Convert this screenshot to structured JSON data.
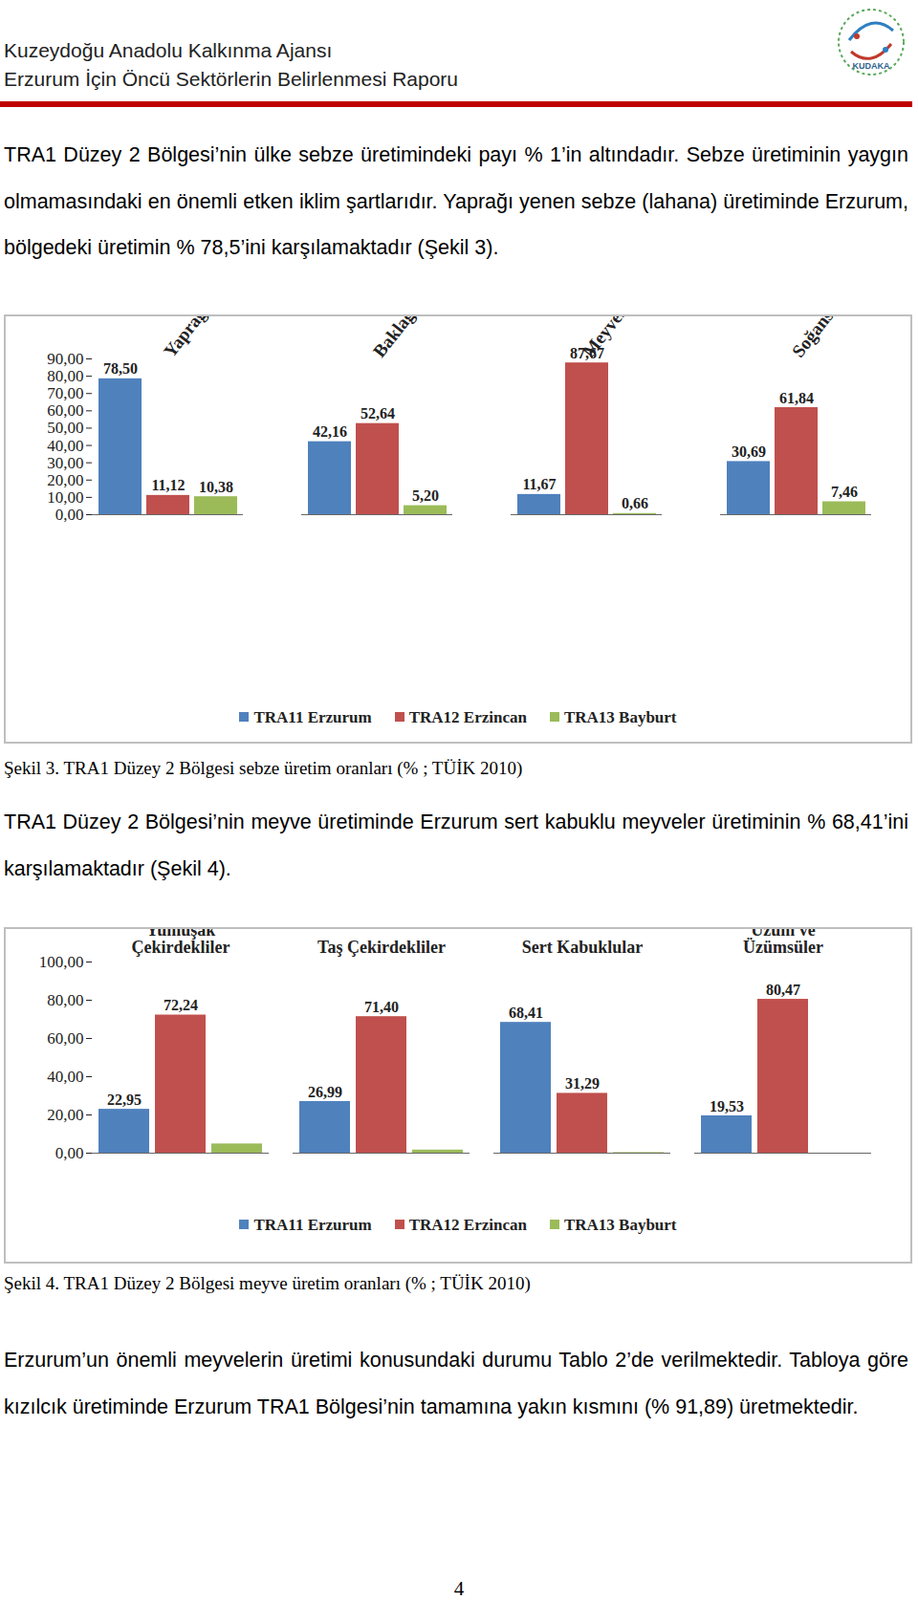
{
  "document": {
    "header": {
      "organization": "Kuzeydoğu Anadolu Kalkınma Ajansı",
      "report_title": "Erzurum İçin Öncü Sektörlerin Belirlenmesi Raporu",
      "logo_text": "KUDAKA"
    },
    "paragraphs": [
      "TRA1 Düzey 2 Bölgesi’nin ülke sebze üretimindeki payı % 1’in altındadır. Sebze üretiminin yaygın olmamasındaki en önemli etken iklim şartlarıdır. Yaprağı yenen sebze (lahana) üretiminde Erzurum, bölgedeki üretimin % 78,5’ini karşılamaktadır (Şekil 3).",
      "TRA1 Düzey 2 Bölgesi’nin meyve üretiminde Erzurum sert kabuklu meyveler üretiminin % 68,41’ini karşılamaktadır (Şekil 4).",
      "Erzurum’un önemli meyvelerin üretimi konusundaki durumu Tablo 2’de verilmektedir. Tabloya göre kızılcık üretiminde Erzurum TRA1 Bölgesi’nin tamamına yakın kısmını (% 91,89) üretmektedir."
    ],
    "page_number": "4"
  },
  "chart_data": [
    {
      "type": "bar",
      "caption": "Şekil 3. TRA1 Düzey 2 Bölgesi sebze üretim oranları (% ; TÜİK 2010)",
      "categories": [
        "Yaprağı Yenen Sebzeler",
        "Baklagil Sebzeler",
        "Meyvesi Yenen Sebzeler",
        "Soğansı-Yumru-Kök.."
      ],
      "series": [
        {
          "name": "TRA11 Erzurum",
          "color": "#4f81bd",
          "values": [
            78.5,
            42.16,
            11.67,
            30.69
          ],
          "value_labels": [
            "78,50",
            "42,16",
            "11,67",
            "30,69"
          ]
        },
        {
          "name": "TRA12 Erzincan",
          "color": "#c0504d",
          "values": [
            11.12,
            52.64,
            87.67,
            61.84
          ],
          "value_labels": [
            "11,12",
            "52,64",
            "87,67",
            "61,84"
          ]
        },
        {
          "name": "TRA13 Bayburt",
          "color": "#9bbb59",
          "values": [
            10.38,
            5.2,
            0.66,
            7.46
          ],
          "value_labels": [
            "10,38",
            "5,20",
            "0,66",
            "7,46"
          ]
        }
      ],
      "ylim": [
        0,
        90
      ],
      "yticks": [
        {
          "value": 0,
          "label": "0,00"
        },
        {
          "value": 10,
          "label": "10,00"
        },
        {
          "value": 20,
          "label": "20,00"
        },
        {
          "value": 30,
          "label": "30,00"
        },
        {
          "value": 40,
          "label": "40,00"
        },
        {
          "value": 50,
          "label": "50,00"
        },
        {
          "value": 60,
          "label": "60,00"
        },
        {
          "value": 70,
          "label": "70,00"
        },
        {
          "value": 80,
          "label": "80,00"
        },
        {
          "value": 90,
          "label": "90,00"
        }
      ],
      "grid": false,
      "legend": "bottom",
      "data_labels": true
    },
    {
      "type": "bar",
      "caption": "Şekil 4. TRA1 Düzey 2 Bölgesi meyve üretim oranları (% ; TÜİK 2010)",
      "categories": [
        "Yumuşak\nÇekirdekliler",
        "Taş Çekirdekliler",
        "Sert Kabuklular",
        "Üzüm ve\nÜzümsüler"
      ],
      "series": [
        {
          "name": "TRA11 Erzurum",
          "color": "#4f81bd",
          "values": [
            22.95,
            26.99,
            68.41,
            19.53
          ],
          "value_labels": [
            "22,95",
            "26,99",
            "68,41",
            "19,53"
          ]
        },
        {
          "name": "TRA12 Erzincan",
          "color": "#c0504d",
          "values": [
            72.24,
            71.4,
            31.29,
            80.47
          ],
          "value_labels": [
            "72,24",
            "71,40",
            "31,29",
            "80,47"
          ]
        },
        {
          "name": "TRA13 Bayburt",
          "color": "#9bbb59",
          "values": [
            4.81,
            1.61,
            0.3,
            0
          ],
          "data_labels": false
        }
      ],
      "ylim": [
        0,
        100
      ],
      "yticks": [
        {
          "value": 0,
          "label": "0,00"
        },
        {
          "value": 20,
          "label": "20,00"
        },
        {
          "value": 40,
          "label": "40,00"
        },
        {
          "value": 60,
          "label": "60,00"
        },
        {
          "value": 80,
          "label": "80,00"
        },
        {
          "value": 100,
          "label": "100,00"
        }
      ],
      "grid": false,
      "legend": "bottom",
      "data_labels": true
    }
  ]
}
